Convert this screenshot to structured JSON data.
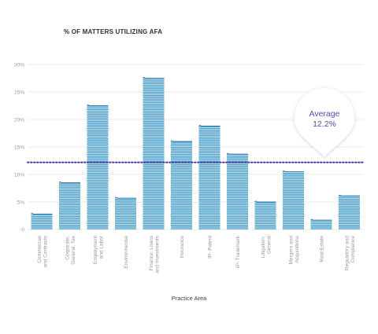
{
  "chart_data": {
    "type": "bar",
    "title": "% OF MATTERS UTILIZING AFA",
    "xlabel": "Practice Area",
    "ylabel": "",
    "ylim": [
      0,
      30
    ],
    "yticks": [
      "0",
      "5%",
      "10%",
      "15%",
      "20%",
      "25%",
      "30%"
    ],
    "categories": [
      [
        "Commercial",
        "and Contracts"
      ],
      [
        "Corporate,",
        "General, Tax"
      ],
      [
        "Employment",
        "and Labor"
      ],
      [
        "Environmental"
      ],
      [
        "Finance, Loans",
        "and Investments"
      ],
      [
        "Insurance"
      ],
      [
        "IP- Patent"
      ],
      [
        "IP- Trademark"
      ],
      [
        "Litigation-",
        "General"
      ],
      [
        "Mergers and",
        "Acquisitions"
      ],
      [
        "Real Estate"
      ],
      [
        "Regulatory and",
        "Compliance"
      ]
    ],
    "values": [
      2.8,
      8.5,
      22.5,
      5.7,
      27.5,
      16.0,
      18.8,
      13.7,
      5.0,
      10.5,
      1.7,
      6.1
    ],
    "average": {
      "label": "Average",
      "value_label": "12.2%",
      "value": 12.2
    },
    "grid": true,
    "colors": {
      "bar": "#4a9fc9",
      "bar_light": "#a9d6ea",
      "average_line": "#4b3f9e",
      "average_text": "#5a4ab0",
      "grid": "#e4e4e4",
      "axis_text": "#9a9a9a"
    }
  }
}
